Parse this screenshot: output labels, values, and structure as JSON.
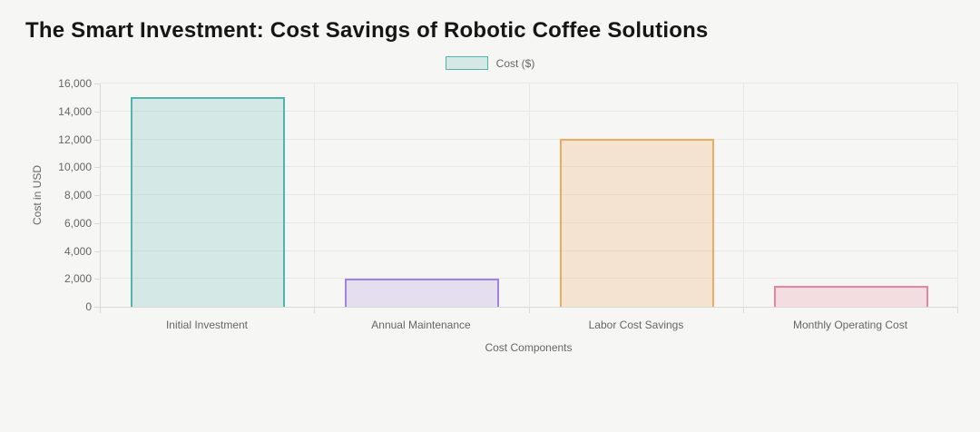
{
  "page": {
    "background": "#f6f6f4"
  },
  "chart_data": {
    "type": "bar",
    "title": "The Smart Investment: Cost Savings of Robotic Coffee Solutions",
    "categories": [
      "Initial Investment",
      "Annual Maintenance",
      "Labor Cost Savings",
      "Monthly Operating Cost"
    ],
    "series": [
      {
        "name": "Cost ($)",
        "values": [
          15000,
          2000,
          12000,
          1500
        ]
      }
    ],
    "xlabel": "Cost Components",
    "ylabel": "Cost in USD",
    "ylim": [
      0,
      16000
    ],
    "ytick_step": 2000,
    "ytick_labels": [
      "0",
      "2,000",
      "4,000",
      "6,000",
      "8,000",
      "10,000",
      "12,000",
      "14,000",
      "16,000"
    ],
    "grid": true,
    "legend_position": "top",
    "colors": [
      {
        "border": "#4fb3ae",
        "fill": "rgba(79,179,174,0.20)"
      },
      {
        "border": "#a383dd",
        "fill": "rgba(163,131,221,0.20)"
      },
      {
        "border": "#efaa62",
        "fill": "rgba(239,170,98,0.25)"
      },
      {
        "border": "#ea85a0",
        "fill": "rgba(234,133,160,0.22)"
      }
    ]
  }
}
